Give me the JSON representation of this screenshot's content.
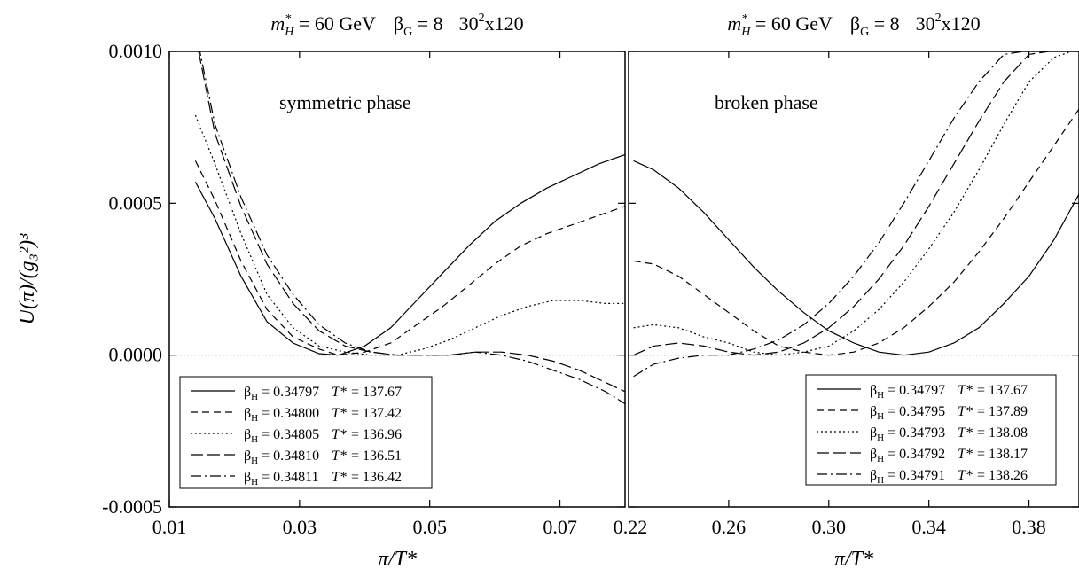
{
  "chart_data": [
    {
      "type": "line",
      "title": "m*H = 60 GeV   βG = 8   30²x120",
      "title_parts": {
        "m": "m",
        "m_sup": "*",
        "m_sub": "H",
        "mass": " = 60 GeV",
        "beta": "β",
        "beta_sub": "G",
        "beta_val": " = 8",
        "lattice": "30",
        "lattice_sup": "2",
        "lattice_rest": "x120"
      },
      "annotation": "symmetric phase",
      "xlabel": "π/T*",
      "ylabel": "U(π)/(g₃²)³",
      "xlim": [
        0.01,
        0.08
      ],
      "ylim": [
        -0.0005,
        0.001
      ],
      "x_ticks": [
        "0.01",
        "0.03",
        "0.05",
        "0.07"
      ],
      "x_tick_values": [
        0.01,
        0.03,
        0.05,
        0.07
      ],
      "y_ticks": [
        "0.0010",
        "0.0005",
        "0.0000",
        "-0.0005"
      ],
      "y_tick_values": [
        0.001,
        0.0005,
        0.0,
        -0.0005
      ],
      "legend_position": "bottom-left",
      "series": [
        {
          "name": "βH = 0.34797   T* = 137.67",
          "beta": "β",
          "sub": "H",
          "bval": " = 0.34797",
          "tval": " = 137.67",
          "dash": "",
          "x": [
            0.014,
            0.017,
            0.021,
            0.025,
            0.029,
            0.033,
            0.036,
            0.04,
            0.044,
            0.048,
            0.052,
            0.056,
            0.06,
            0.064,
            0.068,
            0.072,
            0.076,
            0.08
          ],
          "y": [
            0.00057,
            0.00045,
            0.00026,
            0.00011,
            4e-05,
            5e-06,
            0.0,
            3e-05,
            9e-05,
            0.00018,
            0.00027,
            0.00036,
            0.00044,
            0.0005,
            0.00055,
            0.00059,
            0.00063,
            0.00066
          ]
        },
        {
          "name": "βH = 0.34800   T* = 137.42",
          "beta": "β",
          "sub": "H",
          "bval": " = 0.34800",
          "tval": " = 137.42",
          "dash": "8,5",
          "x": [
            0.014,
            0.017,
            0.021,
            0.025,
            0.029,
            0.033,
            0.036,
            0.04,
            0.044,
            0.048,
            0.052,
            0.056,
            0.06,
            0.064,
            0.068,
            0.072,
            0.076,
            0.08
          ],
          "y": [
            0.00064,
            0.00051,
            0.00031,
            0.00015,
            6e-05,
            2e-05,
            0.0,
            1e-05,
            4e-05,
            0.0001,
            0.00016,
            0.00023,
            0.0003,
            0.00036,
            0.0004,
            0.00043,
            0.00046,
            0.00049
          ]
        },
        {
          "name": "βH = 0.34805   T* = 136.96",
          "beta": "β",
          "sub": "H",
          "bval": " = 0.34805",
          "tval": " = 136.96",
          "dash": "2,3",
          "x": [
            0.014,
            0.017,
            0.021,
            0.025,
            0.029,
            0.033,
            0.037,
            0.041,
            0.045,
            0.049,
            0.053,
            0.057,
            0.061,
            0.065,
            0.069,
            0.073,
            0.077,
            0.08
          ],
          "y": [
            0.00079,
            0.00063,
            0.0004,
            0.0002,
            9e-05,
            3e-05,
            1e-05,
            0.0,
            0.0,
            2e-05,
            5e-05,
            9e-05,
            0.00013,
            0.00016,
            0.00018,
            0.00018,
            0.00017,
            0.00017
          ]
        },
        {
          "name": "βH = 0.34810   T* = 136.51",
          "beta": "β",
          "sub": "H",
          "bval": " = 0.34810",
          "tval": " = 136.51",
          "dash": "14,5",
          "x": [
            0.0145,
            0.017,
            0.021,
            0.025,
            0.029,
            0.033,
            0.037,
            0.041,
            0.045,
            0.049,
            0.053,
            0.057,
            0.061,
            0.065,
            0.069,
            0.073,
            0.077,
            0.08
          ],
          "y": [
            0.001,
            0.00073,
            0.00049,
            0.0003,
            0.00017,
            8e-05,
            3e-05,
            1e-05,
            0.0,
            0.0,
            0.0,
            1e-05,
            1e-05,
            0.0,
            -2e-05,
            -5e-05,
            -9e-05,
            -0.00012
          ]
        },
        {
          "name": "βH = 0.34811   T* = 136.42",
          "beta": "β",
          "sub": "H",
          "bval": " = 0.34811",
          "tval": " = 136.42",
          "dash": "12,4,2,4",
          "x": [
            0.0145,
            0.017,
            0.021,
            0.025,
            0.029,
            0.033,
            0.037,
            0.041,
            0.045,
            0.049,
            0.053,
            0.057,
            0.061,
            0.065,
            0.069,
            0.073,
            0.077,
            0.08
          ],
          "y": [
            0.00102,
            0.00076,
            0.00052,
            0.00033,
            0.0002,
            0.0001,
            4e-05,
            1e-05,
            0.0,
            0.0,
            0.0,
            1e-05,
            0.0,
            -2e-05,
            -5e-05,
            -8e-05,
            -0.00012,
            -0.00016
          ]
        }
      ]
    },
    {
      "type": "line",
      "title": "m*H = 60 GeV   βG = 8   30²x120",
      "title_parts": {
        "m": "m",
        "m_sup": "*",
        "m_sub": "H",
        "mass": " = 60 GeV",
        "beta": "β",
        "beta_sub": "G",
        "beta_val": " = 8",
        "lattice": "30",
        "lattice_sup": "2",
        "lattice_rest": "x120"
      },
      "annotation": "broken phase",
      "xlabel": "π/T*",
      "xlim": [
        0.22,
        0.4
      ],
      "ylim": [
        -0.0005,
        0.001
      ],
      "x_ticks": [
        "0.22",
        "0.26",
        "0.30",
        "0.34",
        "0.38"
      ],
      "x_tick_values": [
        0.22,
        0.26,
        0.3,
        0.34,
        0.38
      ],
      "legend_position": "bottom-right",
      "series": [
        {
          "name": "βH = 0.34797   T* = 137.67",
          "beta": "β",
          "sub": "H",
          "bval": " = 0.34797",
          "tval": " = 137.67",
          "dash": "",
          "x": [
            0.222,
            0.23,
            0.24,
            0.25,
            0.26,
            0.27,
            0.28,
            0.29,
            0.3,
            0.31,
            0.32,
            0.33,
            0.34,
            0.35,
            0.36,
            0.37,
            0.38,
            0.39,
            0.4
          ],
          "y": [
            0.00064,
            0.00061,
            0.00055,
            0.00047,
            0.00038,
            0.00029,
            0.00021,
            0.00014,
            8e-05,
            4e-05,
            1e-05,
            0.0,
            1e-05,
            4e-05,
            9e-05,
            0.00017,
            0.00026,
            0.00038,
            0.00053
          ]
        },
        {
          "name": "βH = 0.34795   T* = 137.89",
          "beta": "β",
          "sub": "H",
          "bval": " = 0.34795",
          "tval": " = 137.89",
          "dash": "8,5",
          "x": [
            0.222,
            0.23,
            0.24,
            0.25,
            0.26,
            0.27,
            0.28,
            0.29,
            0.3,
            0.31,
            0.32,
            0.33,
            0.34,
            0.35,
            0.36,
            0.37,
            0.38,
            0.39,
            0.4
          ],
          "y": [
            0.00031,
            0.0003,
            0.00026,
            0.0002,
            0.00014,
            8e-05,
            3e-05,
            1e-05,
            0.0,
            1e-05,
            4e-05,
            9e-05,
            0.00016,
            0.00024,
            0.00034,
            0.00045,
            0.00057,
            0.00069,
            0.00081
          ]
        },
        {
          "name": "βH = 0.34793   T* = 138.08",
          "beta": "β",
          "sub": "H",
          "bval": " = 0.34793",
          "tval": " = 138.08",
          "dash": "2,3",
          "x": [
            0.222,
            0.23,
            0.24,
            0.25,
            0.26,
            0.27,
            0.28,
            0.29,
            0.3,
            0.31,
            0.32,
            0.33,
            0.34,
            0.35,
            0.36,
            0.37,
            0.38,
            0.39,
            0.397
          ],
          "y": [
            9e-05,
            0.0001,
            9e-05,
            6e-05,
            4e-05,
            1e-05,
            0.0,
            1e-05,
            3e-05,
            8e-05,
            0.00015,
            0.00024,
            0.00035,
            0.00047,
            0.00061,
            0.00076,
            0.0009,
            0.00098,
            0.001
          ]
        },
        {
          "name": "βH = 0.34792   T* = 138.17",
          "beta": "β",
          "sub": "H",
          "bval": " = 0.34792",
          "tval": " = 138.17",
          "dash": "14,5",
          "x": [
            0.222,
            0.23,
            0.24,
            0.25,
            0.26,
            0.27,
            0.28,
            0.29,
            0.3,
            0.31,
            0.32,
            0.33,
            0.34,
            0.35,
            0.36,
            0.37,
            0.38,
            0.388
          ],
          "y": [
            0.0,
            3e-05,
            4e-05,
            3e-05,
            1e-05,
            0.0,
            1e-05,
            4e-05,
            9e-05,
            0.00016,
            0.00025,
            0.00036,
            0.00049,
            0.00063,
            0.00077,
            0.0009,
            0.00099,
            0.001
          ]
        },
        {
          "name": "βH = 0.34791   T* = 138.26",
          "beta": "β",
          "sub": "H",
          "bval": " = 0.34791",
          "tval": " = 138.26",
          "dash": "12,4,2,4",
          "x": [
            0.222,
            0.23,
            0.24,
            0.25,
            0.26,
            0.27,
            0.28,
            0.29,
            0.3,
            0.31,
            0.32,
            0.33,
            0.34,
            0.35,
            0.36,
            0.37,
            0.378
          ],
          "y": [
            -7e-05,
            -3e-05,
            -1e-05,
            0.0,
            0.0,
            2e-05,
            5e-05,
            0.0001,
            0.00017,
            0.00026,
            0.00037,
            0.0005,
            0.00064,
            0.00078,
            0.0009,
            0.00099,
            0.001
          ]
        }
      ]
    }
  ]
}
